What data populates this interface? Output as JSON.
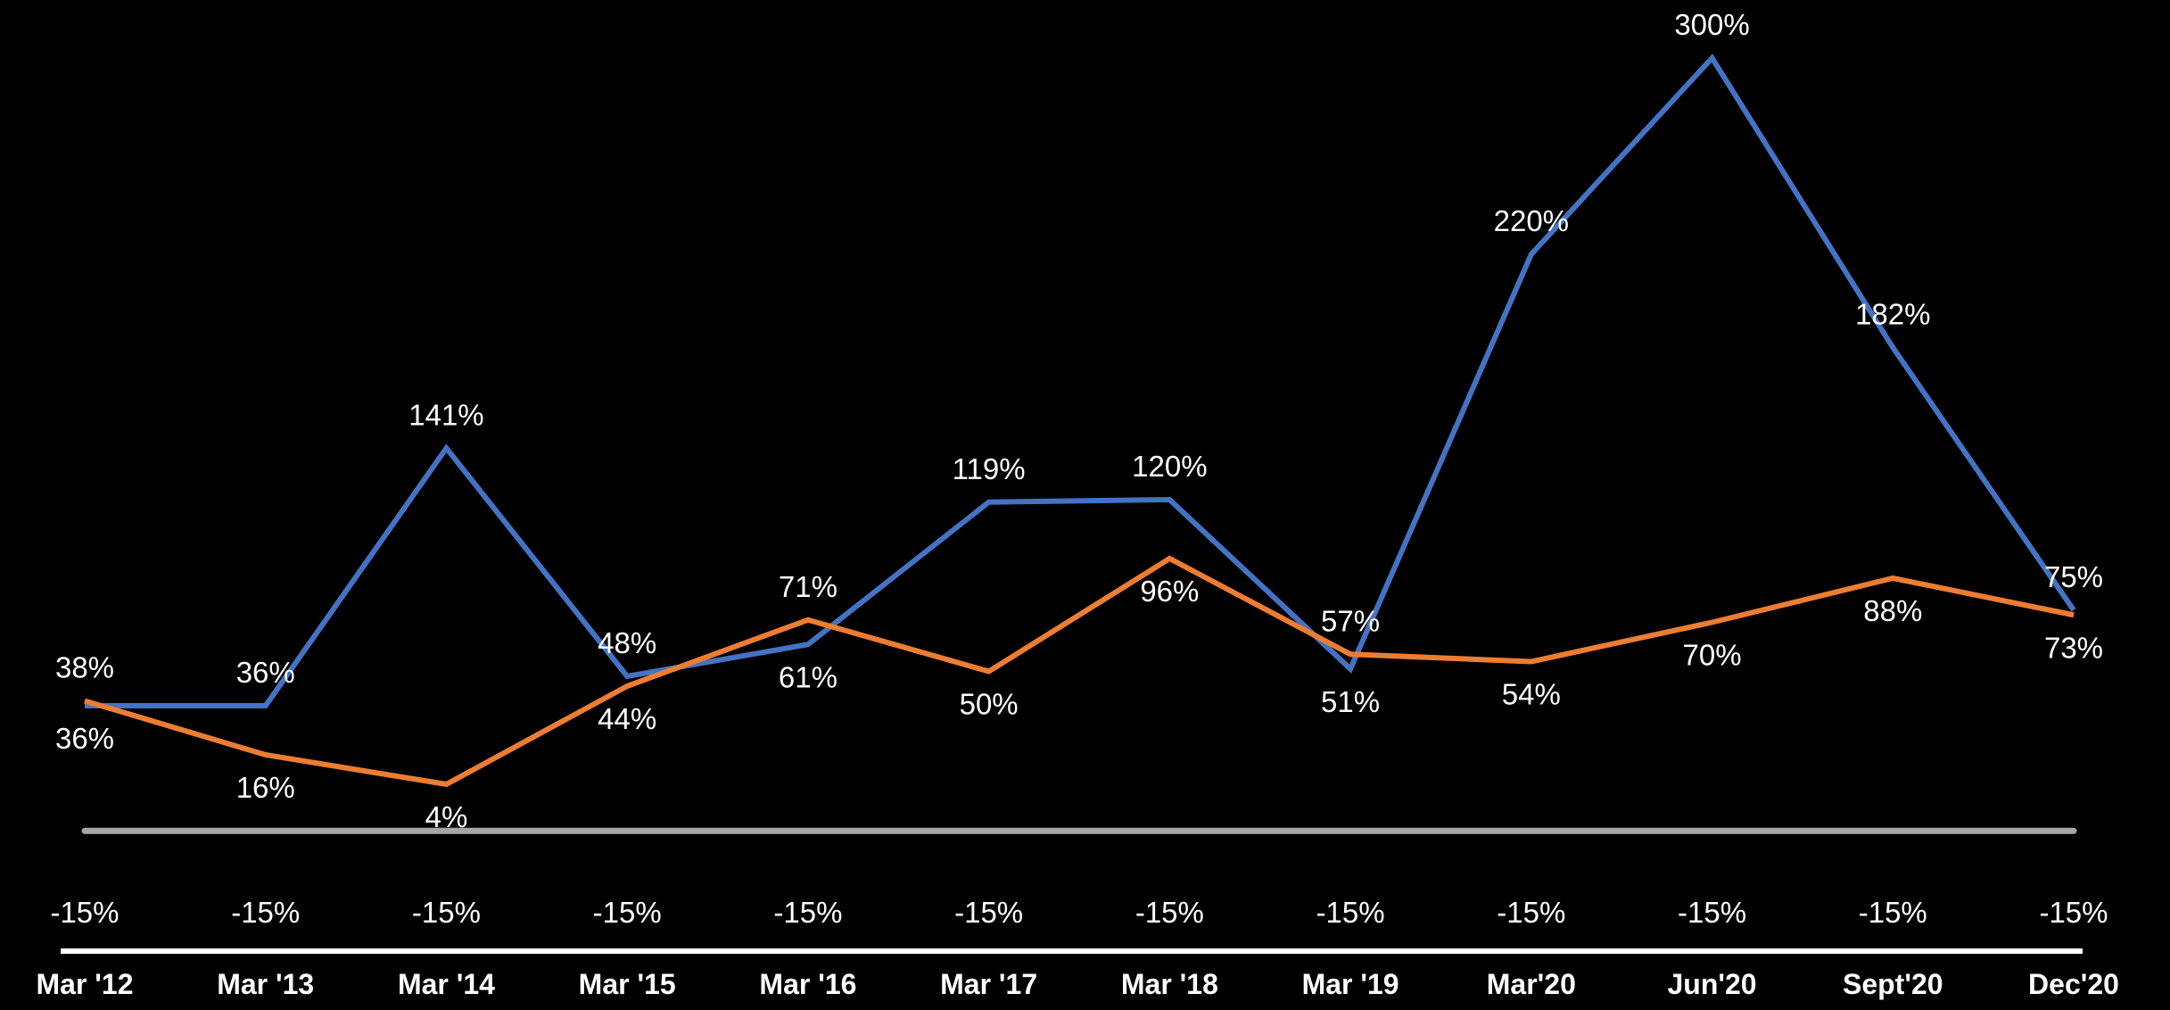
{
  "chart_data": {
    "type": "line",
    "categories": [
      "Mar '12",
      "Mar '13",
      "Mar '14",
      "Mar '15",
      "Mar '16",
      "Mar '17",
      "Mar '18",
      "Mar '19",
      "Mar'20",
      "Jun'20",
      "Sept'20",
      "Dec'20"
    ],
    "series": [
      {
        "values": [
          36,
          36,
          141,
          48,
          61,
          119,
          120,
          51,
          220,
          300,
          182,
          75
        ],
        "labels": [
          "36%",
          "36%",
          "141%",
          "48%",
          "61%",
          "119%",
          "120%",
          "51%",
          "220%",
          "300%",
          "182%",
          "75%"
        ],
        "color": "#4472C4"
      },
      {
        "values": [
          38,
          16,
          4,
          44,
          71,
          50,
          96,
          57,
          54,
          70,
          88,
          73
        ],
        "labels": [
          "38%",
          "16%",
          "4%",
          "44%",
          "71%",
          "50%",
          "96%",
          "57%",
          "54%",
          "70%",
          "88%",
          "73%"
        ],
        "color": "#ED7D31"
      }
    ],
    "baseline": {
      "values": [
        -15,
        -15,
        -15,
        -15,
        -15,
        -15,
        -15,
        -15,
        -15,
        -15,
        -15,
        -15
      ],
      "labels": [
        "-15%",
        "-15%",
        "-15%",
        "-15%",
        "-15%",
        "-15%",
        "-15%",
        "-15%",
        "-15%",
        "-15%",
        "-15%",
        "-15%"
      ],
      "color": "#A6A6A6"
    },
    "axis_color": "#FFFFFF",
    "background": "#000000",
    "title": "",
    "xlabel": "",
    "ylabel": "",
    "legend": "none",
    "grid": false
  }
}
